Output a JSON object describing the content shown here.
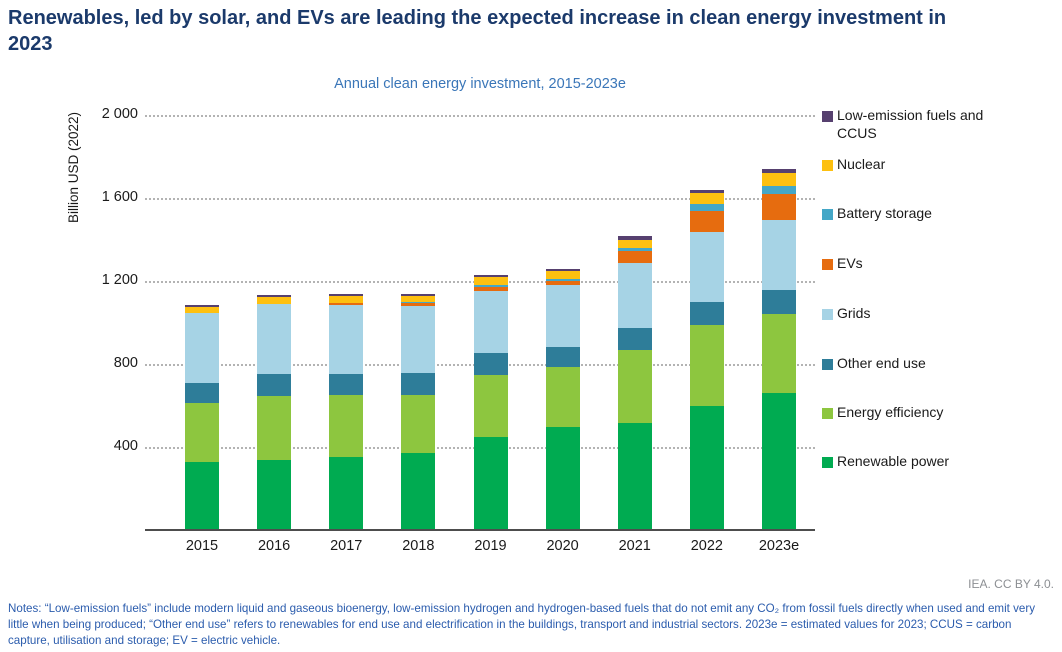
{
  "header": {
    "title": "Renewables, led by solar, and EVs are leading the expected increase in clean energy investment in 2023"
  },
  "chart": {
    "subtitle": "Annual clean energy investment, 2015-2023e",
    "y_axis_label": "Billion USD (2022)",
    "y_tick_labels": [
      "2 000",
      "1 600",
      "1 200",
      "800",
      "400"
    ]
  },
  "chart_data": {
    "type": "bar",
    "stacked": true,
    "title": "Annual clean energy investment, 2015-2023e",
    "xlabel": "",
    "ylabel": "Billion USD (2022)",
    "ylim": [
      0,
      2000
    ],
    "yticks": [
      2000,
      1600,
      1200,
      800,
      400
    ],
    "grid": "dotted horizontal",
    "legend_position": "right",
    "legend_order_top_to_bottom": [
      "Low-emission fuels and CCUS",
      "Nuclear",
      "Battery storage",
      "EVs",
      "Grids",
      "Other end use",
      "Energy efficiency",
      "Renewable power"
    ],
    "categories": [
      "2015",
      "2016",
      "2017",
      "2018",
      "2019",
      "2020",
      "2021",
      "2022",
      "2023e"
    ],
    "series": [
      {
        "name": "Renewable power",
        "color": "#00ab51",
        "values": [
          325,
          335,
          345,
          365,
          445,
          490,
          510,
          595,
          655
        ]
      },
      {
        "name": "Energy efficiency",
        "color": "#8dc63f",
        "values": [
          280,
          305,
          300,
          280,
          295,
          290,
          355,
          390,
          380
        ]
      },
      {
        "name": "Other end use",
        "color": "#2e7d99",
        "values": [
          100,
          105,
          100,
          105,
          110,
          95,
          105,
          110,
          115
        ]
      },
      {
        "name": "Grids",
        "color": "#a6d3e5",
        "values": [
          335,
          340,
          335,
          325,
          295,
          300,
          310,
          335,
          340
        ]
      },
      {
        "name": "EVs",
        "color": "#e66c0f",
        "values": [
          0,
          0,
          10,
          15,
          20,
          20,
          60,
          105,
          125
        ]
      },
      {
        "name": "Battery storage",
        "color": "#44a7c7",
        "values": [
          0,
          0,
          0,
          5,
          10,
          10,
          15,
          30,
          40
        ]
      },
      {
        "name": "Nuclear",
        "color": "#fdc010",
        "values": [
          30,
          35,
          35,
          30,
          40,
          40,
          40,
          55,
          60
        ]
      },
      {
        "name": "Low-emission fuels and CCUS",
        "color": "#56406f",
        "values": [
          10,
          10,
          10,
          10,
          10,
          10,
          15,
          15,
          20
        ]
      }
    ],
    "totals": [
      1080,
      1130,
      1135,
      1135,
      1225,
      1255,
      1410,
      1635,
      1735
    ]
  },
  "footer": {
    "attribution": "IEA. CC BY 4.0.",
    "notes": "Notes: “Low-emission fuels” include modern liquid and gaseous bioenergy, low-emission hydrogen and hydrogen-based fuels that do not emit any CO₂ from fossil fuels directly when used and emit very little when being produced; “Other end use” refers to renewables for end use and electrification in the buildings, transport and industrial sectors. 2023e = estimated values for 2023; CCUS = carbon capture, utilisation and storage; EV = electric vehicle."
  }
}
